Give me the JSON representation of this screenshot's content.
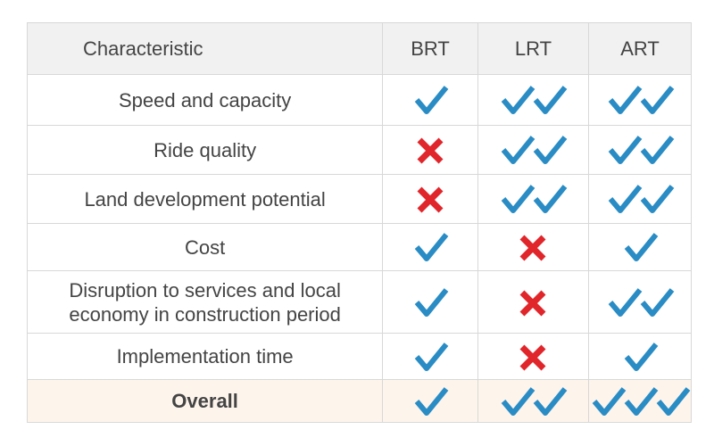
{
  "table": {
    "header": [
      "Characteristic",
      "BRT",
      "LRT",
      "ART"
    ],
    "rows": [
      {
        "label": "Speed and capacity",
        "ratings": [
          1,
          2,
          2
        ]
      },
      {
        "label": "Ride quality",
        "ratings": [
          0,
          2,
          2
        ]
      },
      {
        "label": "Land development potential",
        "ratings": [
          0,
          2,
          2
        ]
      },
      {
        "label": "Cost",
        "ratings": [
          1,
          0,
          1
        ]
      },
      {
        "label": "Disruption to services and local economy in construction period",
        "ratings": [
          1,
          0,
          2
        ]
      },
      {
        "label": "Implementation time",
        "ratings": [
          1,
          0,
          1
        ]
      },
      {
        "label": "Overall",
        "ratings": [
          1,
          2,
          3
        ]
      }
    ]
  }
}
